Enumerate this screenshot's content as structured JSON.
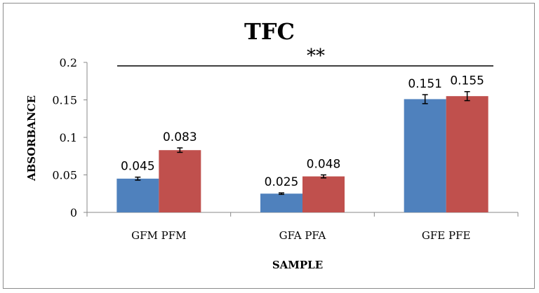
{
  "chart_data": {
    "type": "bar",
    "title": "TFC",
    "xlabel": "SAMPLE",
    "ylabel": "ABSORBANCE",
    "categories": [
      "GFM PFM",
      "GFA PFA",
      "GFE PFE"
    ],
    "series": [
      {
        "values": [
          0.045,
          0.025,
          0.151
        ],
        "errors": [
          0.002,
          0.001,
          0.006
        ],
        "labels": [
          "0.045",
          "0.025",
          "0.151"
        ],
        "color": "#4f81bd"
      },
      {
        "values": [
          0.083,
          0.048,
          0.155
        ],
        "errors": [
          0.003,
          0.002,
          0.006
        ],
        "labels": [
          "0.083",
          "0.048",
          "0.155"
        ],
        "color": "#c0504d"
      }
    ],
    "ylim": [
      0,
      0.2
    ],
    "yticks": [
      0,
      0.05,
      0.1,
      0.15,
      0.2
    ],
    "ytick_labels": [
      "0",
      "0.05",
      "0.1",
      "0.15",
      "0.2"
    ],
    "significance": "**",
    "grid": false,
    "legend": "none"
  }
}
